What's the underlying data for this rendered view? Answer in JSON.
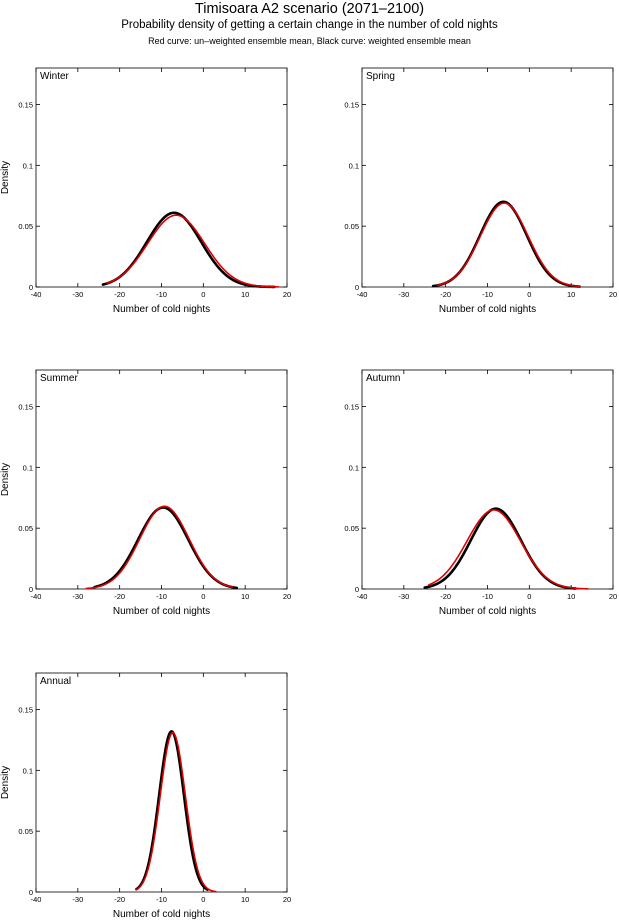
{
  "header": {
    "title": "Timisoara A2 scenario (2071–2100)",
    "subtitle": "Probability density of getting a certain change in the number of cold nights",
    "note": "Red curve: un–weighted ensemble mean, Black curve: weighted ensemble mean"
  },
  "colors": {
    "weighted": "#000000",
    "unweighted": "#e00000",
    "axis": "#000000",
    "background": "#ffffff"
  },
  "chart_data": [
    {
      "type": "line",
      "panel_label": "Winter",
      "xlabel": "Number of cold nights",
      "ylabel": "Density",
      "xlim": [
        -40,
        20
      ],
      "ylim": [
        0,
        0.18
      ],
      "x_ticks": [
        -40,
        -30,
        -20,
        -10,
        0,
        10,
        20
      ],
      "y_ticks": [
        0,
        0.05,
        0.1,
        0.15
      ],
      "y_tick_labels": [
        "0",
        "0.05",
        "0.1",
        "0.15"
      ],
      "series": [
        {
          "name": "Black curve: weighted ensemble mean",
          "color": "#000000",
          "model": "gaussian",
          "peak_x": -7,
          "peak_y": 0.061,
          "sd": 6.5,
          "x_range": [
            -24,
            17
          ]
        },
        {
          "name": "Red curve: un–weighted ensemble mean",
          "color": "#e00000",
          "model": "gaussian",
          "peak_x": -6.5,
          "peak_y": 0.059,
          "sd": 6.8,
          "x_range": [
            -23,
            18
          ]
        }
      ]
    },
    {
      "type": "line",
      "panel_label": "Spring",
      "xlabel": "Number of cold nights",
      "ylabel": "",
      "xlim": [
        -40,
        20
      ],
      "ylim": [
        0,
        0.18
      ],
      "x_ticks": [
        -40,
        -30,
        -20,
        -10,
        0,
        10,
        20
      ],
      "y_ticks": [
        0,
        0.05,
        0.1,
        0.15
      ],
      "y_tick_labels": [
        "0",
        "0.05",
        "0.1",
        "0.15"
      ],
      "series": [
        {
          "name": "Black curve: weighted ensemble mean",
          "color": "#000000",
          "model": "gaussian",
          "peak_x": -6.2,
          "peak_y": 0.07,
          "sd": 5.6,
          "x_range": [
            -23,
            12
          ]
        },
        {
          "name": "Red curve: un–weighted ensemble mean",
          "color": "#e00000",
          "model": "gaussian",
          "peak_x": -6.0,
          "peak_y": 0.069,
          "sd": 5.7,
          "x_range": [
            -22,
            12
          ]
        }
      ]
    },
    {
      "type": "line",
      "panel_label": "Summer",
      "xlabel": "Number of cold nights",
      "ylabel": "Density",
      "xlim": [
        -40,
        20
      ],
      "ylim": [
        0,
        0.18
      ],
      "x_ticks": [
        -40,
        -30,
        -20,
        -10,
        0,
        10,
        20
      ],
      "y_ticks": [
        0,
        0.05,
        0.1,
        0.15
      ],
      "y_tick_labels": [
        "0",
        "0.05",
        "0.1",
        "0.15"
      ],
      "series": [
        {
          "name": "Black curve: weighted ensemble mean",
          "color": "#000000",
          "model": "gaussian",
          "peak_x": -9.6,
          "peak_y": 0.067,
          "sd": 6.0,
          "x_range": [
            -26,
            8
          ]
        },
        {
          "name": "Red curve: un–weighted ensemble mean",
          "color": "#e00000",
          "model": "gaussian",
          "peak_x": -9.3,
          "peak_y": 0.068,
          "sd": 5.9,
          "x_range": [
            -28,
            7
          ]
        }
      ]
    },
    {
      "type": "line",
      "panel_label": "Autumn",
      "xlabel": "Number of cold nights",
      "ylabel": "",
      "xlim": [
        -40,
        20
      ],
      "ylim": [
        0,
        0.18
      ],
      "x_ticks": [
        -40,
        -30,
        -20,
        -10,
        0,
        10,
        20
      ],
      "y_ticks": [
        0,
        0.05,
        0.1,
        0.15
      ],
      "y_tick_labels": [
        "0",
        "0.05",
        "0.1",
        "0.15"
      ],
      "series": [
        {
          "name": "Black curve: weighted ensemble mean",
          "color": "#000000",
          "model": "gaussian",
          "peak_x": -8.0,
          "peak_y": 0.066,
          "sd": 6.0,
          "x_range": [
            -25,
            11
          ]
        },
        {
          "name": "Red curve: un–weighted ensemble mean",
          "color": "#e00000",
          "model": "gaussian",
          "peak_x": -8.5,
          "peak_y": 0.065,
          "sd": 6.4,
          "x_range": [
            -24,
            14
          ]
        }
      ]
    },
    {
      "type": "line",
      "panel_label": "Annual",
      "xlabel": "Number of cold nights",
      "ylabel": "Density",
      "xlim": [
        -40,
        20
      ],
      "ylim": [
        0,
        0.18
      ],
      "x_ticks": [
        -40,
        -30,
        -20,
        -10,
        0,
        10,
        20
      ],
      "y_ticks": [
        0,
        0.05,
        0.1,
        0.15
      ],
      "y_tick_labels": [
        "0",
        "0.05",
        "0.1",
        "0.15"
      ],
      "series": [
        {
          "name": "Black curve: weighted ensemble mean",
          "color": "#000000",
          "model": "gaussian",
          "peak_x": -7.6,
          "peak_y": 0.132,
          "sd": 2.95,
          "x_range": [
            -16,
            1
          ]
        },
        {
          "name": "Red curve: un–weighted ensemble mean",
          "color": "#e00000",
          "model": "gaussian",
          "peak_x": -7.3,
          "peak_y": 0.131,
          "sd": 3.0,
          "x_range": [
            -16,
            3
          ]
        }
      ]
    }
  ]
}
